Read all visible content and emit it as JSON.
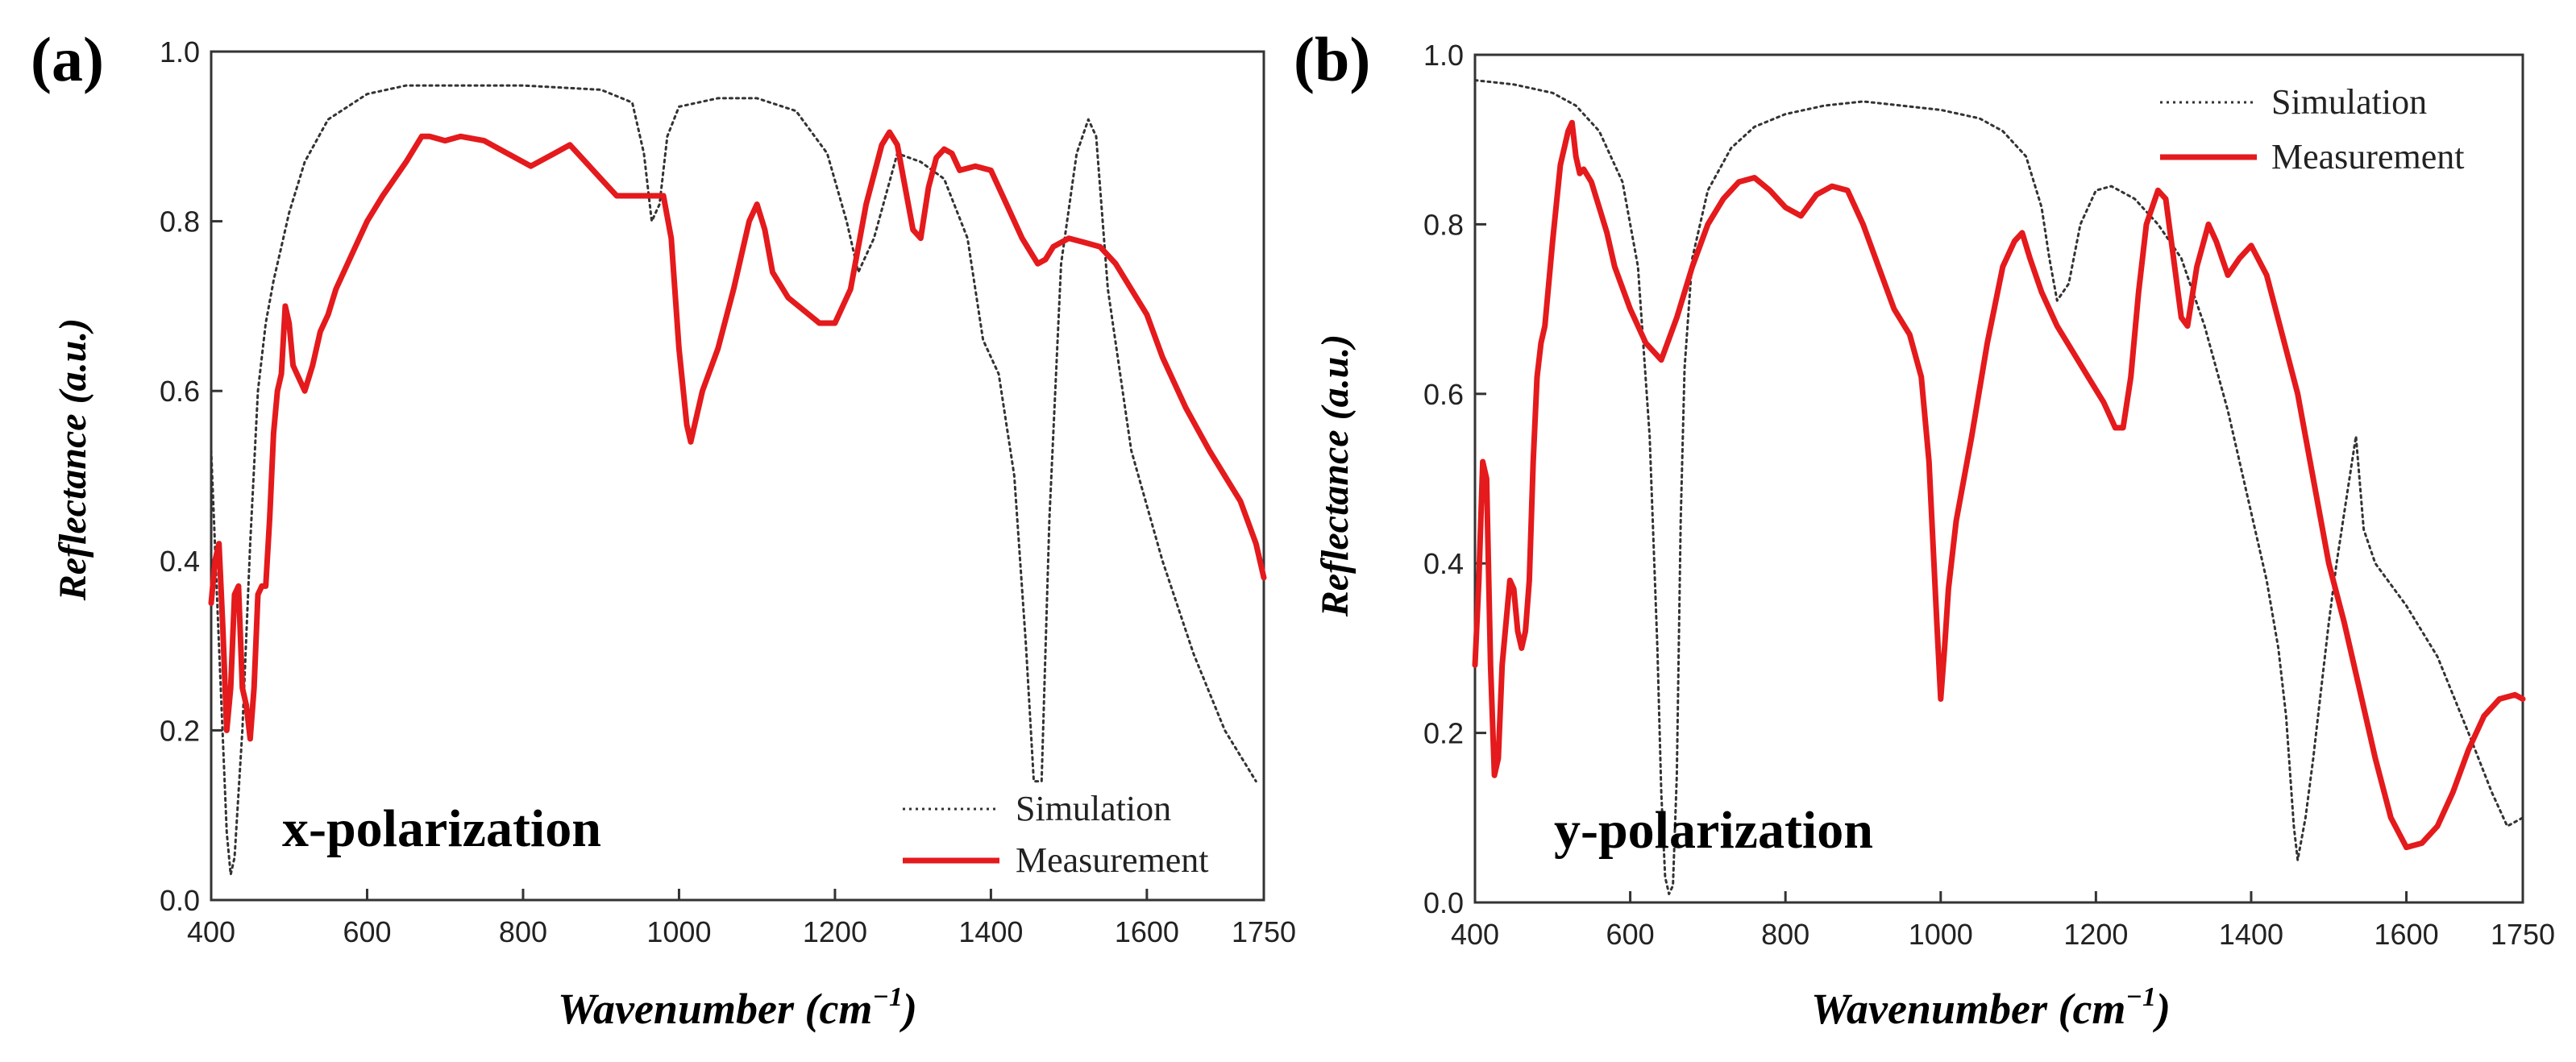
{
  "chart_data": [
    {
      "type": "line",
      "panel_label": "(a)",
      "annotation": "x-polarization",
      "xlabel": "Wavenumber (cm",
      "xlabel_sup": "−1",
      "xlabel_end": ")",
      "ylabel": "Reflectance (a.u.)",
      "xlim": [
        400,
        1750
      ],
      "ylim": [
        0.0,
        1.0
      ],
      "xticks": [
        400,
        600,
        800,
        1000,
        1200,
        1400,
        1600,
        1750
      ],
      "yticks": [
        0.0,
        0.2,
        0.4,
        0.6,
        0.8,
        1.0
      ],
      "xtick_labels": [
        "400",
        "600",
        "800",
        "1000",
        "1200",
        "1400",
        "1600",
        "1750"
      ],
      "ytick_labels": [
        "0.0",
        "0.2",
        "0.4",
        "0.6",
        "0.8",
        "1.0"
      ],
      "legend": {
        "position": "bottom-right",
        "entries": [
          "Simulation",
          "Measurement"
        ]
      },
      "series": [
        {
          "name": "Simulation",
          "style": "dotted",
          "color": "#333333",
          "x": [
            400,
            410,
            420,
            425,
            430,
            440,
            450,
            460,
            470,
            480,
            490,
            500,
            520,
            550,
            600,
            650,
            700,
            800,
            900,
            940,
            955,
            965,
            975,
            985,
            1000,
            1050,
            1100,
            1150,
            1190,
            1215,
            1230,
            1250,
            1280,
            1310,
            1340,
            1370,
            1390,
            1410,
            1430,
            1445,
            1455,
            1465,
            1475,
            1490,
            1510,
            1525,
            1535,
            1550,
            1580,
            1620,
            1660,
            1700,
            1740
          ],
          "y": [
            0.53,
            0.3,
            0.08,
            0.03,
            0.05,
            0.2,
            0.42,
            0.6,
            0.68,
            0.73,
            0.77,
            0.81,
            0.87,
            0.92,
            0.95,
            0.96,
            0.96,
            0.96,
            0.955,
            0.94,
            0.88,
            0.8,
            0.82,
            0.9,
            0.935,
            0.945,
            0.945,
            0.93,
            0.88,
            0.8,
            0.74,
            0.78,
            0.88,
            0.87,
            0.85,
            0.78,
            0.66,
            0.62,
            0.5,
            0.3,
            0.14,
            0.14,
            0.45,
            0.75,
            0.88,
            0.92,
            0.9,
            0.72,
            0.53,
            0.4,
            0.29,
            0.2,
            0.14
          ]
        },
        {
          "name": "Measurement",
          "style": "solid",
          "color": "#e41a1c",
          "x": [
            400,
            405,
            410,
            415,
            420,
            425,
            430,
            435,
            440,
            445,
            450,
            455,
            460,
            465,
            470,
            475,
            480,
            485,
            490,
            495,
            500,
            505,
            510,
            515,
            520,
            530,
            540,
            550,
            560,
            580,
            600,
            620,
            650,
            670,
            680,
            700,
            720,
            750,
            780,
            810,
            840,
            860,
            880,
            900,
            920,
            950,
            980,
            990,
            1000,
            1010,
            1015,
            1020,
            1030,
            1050,
            1070,
            1090,
            1100,
            1110,
            1120,
            1140,
            1160,
            1180,
            1200,
            1220,
            1240,
            1260,
            1270,
            1280,
            1290,
            1300,
            1310,
            1320,
            1330,
            1340,
            1350,
            1360,
            1380,
            1400,
            1420,
            1440,
            1460,
            1470,
            1480,
            1500,
            1520,
            1540,
            1560,
            1580,
            1600,
            1620,
            1650,
            1680,
            1700,
            1720,
            1740,
            1750
          ],
          "y": [
            0.35,
            0.4,
            0.42,
            0.32,
            0.2,
            0.25,
            0.36,
            0.37,
            0.25,
            0.23,
            0.19,
            0.25,
            0.36,
            0.37,
            0.37,
            0.45,
            0.55,
            0.6,
            0.62,
            0.7,
            0.68,
            0.63,
            0.62,
            0.61,
            0.6,
            0.63,
            0.67,
            0.69,
            0.72,
            0.76,
            0.8,
            0.83,
            0.87,
            0.9,
            0.9,
            0.895,
            0.9,
            0.895,
            0.88,
            0.865,
            0.88,
            0.89,
            0.87,
            0.85,
            0.83,
            0.83,
            0.83,
            0.78,
            0.65,
            0.56,
            0.54,
            0.56,
            0.6,
            0.65,
            0.72,
            0.8,
            0.82,
            0.79,
            0.74,
            0.71,
            0.695,
            0.68,
            0.68,
            0.72,
            0.82,
            0.89,
            0.905,
            0.89,
            0.84,
            0.79,
            0.78,
            0.84,
            0.875,
            0.885,
            0.88,
            0.86,
            0.865,
            0.86,
            0.82,
            0.78,
            0.75,
            0.755,
            0.77,
            0.78,
            0.775,
            0.77,
            0.75,
            0.72,
            0.69,
            0.64,
            0.58,
            0.53,
            0.5,
            0.47,
            0.42,
            0.38
          ]
        }
      ]
    },
    {
      "type": "line",
      "panel_label": "(b)",
      "annotation": "y-polarization",
      "xlabel": "Wavenumber (cm",
      "xlabel_sup": "−1",
      "xlabel_end": ")",
      "ylabel": "Reflectance (a.u.)",
      "xlim": [
        400,
        1750
      ],
      "ylim": [
        0.0,
        1.0
      ],
      "xticks": [
        400,
        600,
        800,
        1000,
        1200,
        1400,
        1600,
        1750
      ],
      "yticks": [
        0.0,
        0.2,
        0.4,
        0.6,
        0.8,
        1.0
      ],
      "xtick_labels": [
        "400",
        "600",
        "800",
        "1000",
        "1200",
        "1400",
        "1600",
        "1750"
      ],
      "ytick_labels": [
        "0.0",
        "0.2",
        "0.4",
        "0.6",
        "0.8",
        "1.0"
      ],
      "legend": {
        "position": "top-right",
        "entries": [
          "Simulation",
          "Measurement"
        ]
      },
      "series": [
        {
          "name": "Simulation",
          "style": "dotted",
          "color": "#333333",
          "x": [
            400,
            450,
            500,
            530,
            560,
            590,
            610,
            625,
            635,
            640,
            645,
            650,
            655,
            660,
            665,
            670,
            680,
            700,
            730,
            760,
            800,
            850,
            900,
            950,
            1000,
            1050,
            1080,
            1110,
            1130,
            1140,
            1150,
            1165,
            1180,
            1200,
            1220,
            1250,
            1280,
            1310,
            1340,
            1370,
            1400,
            1420,
            1435,
            1445,
            1455,
            1460,
            1470,
            1480,
            1490,
            1500,
            1510,
            1520,
            1530,
            1535,
            1545,
            1560,
            1600,
            1640,
            1680,
            1710,
            1730,
            1750
          ],
          "y": [
            0.97,
            0.965,
            0.955,
            0.94,
            0.91,
            0.85,
            0.75,
            0.55,
            0.3,
            0.13,
            0.03,
            0.01,
            0.02,
            0.15,
            0.45,
            0.63,
            0.76,
            0.84,
            0.89,
            0.915,
            0.93,
            0.94,
            0.945,
            0.94,
            0.935,
            0.925,
            0.91,
            0.88,
            0.82,
            0.76,
            0.71,
            0.73,
            0.8,
            0.84,
            0.845,
            0.83,
            0.8,
            0.76,
            0.68,
            0.58,
            0.46,
            0.38,
            0.3,
            0.22,
            0.09,
            0.05,
            0.1,
            0.17,
            0.25,
            0.33,
            0.4,
            0.46,
            0.52,
            0.55,
            0.44,
            0.4,
            0.35,
            0.29,
            0.2,
            0.13,
            0.09,
            0.1
          ]
        },
        {
          "name": "Measurement",
          "style": "solid",
          "color": "#e41a1c",
          "x": [
            400,
            405,
            410,
            415,
            420,
            425,
            430,
            435,
            440,
            445,
            450,
            455,
            460,
            465,
            470,
            475,
            480,
            485,
            490,
            500,
            510,
            520,
            525,
            530,
            535,
            540,
            550,
            560,
            570,
            580,
            600,
            620,
            640,
            660,
            680,
            700,
            720,
            740,
            760,
            780,
            800,
            820,
            840,
            860,
            880,
            900,
            920,
            940,
            960,
            975,
            985,
            995,
            1000,
            1005,
            1010,
            1020,
            1040,
            1060,
            1080,
            1095,
            1105,
            1115,
            1130,
            1150,
            1170,
            1190,
            1210,
            1225,
            1235,
            1245,
            1255,
            1265,
            1280,
            1290,
            1300,
            1310,
            1318,
            1330,
            1345,
            1355,
            1370,
            1385,
            1400,
            1420,
            1440,
            1460,
            1480,
            1500,
            1520,
            1540,
            1560,
            1580,
            1600,
            1620,
            1640,
            1660,
            1680,
            1700,
            1720,
            1740,
            1750
          ],
          "y": [
            0.28,
            0.38,
            0.52,
            0.5,
            0.28,
            0.15,
            0.17,
            0.28,
            0.33,
            0.38,
            0.37,
            0.32,
            0.3,
            0.32,
            0.38,
            0.52,
            0.62,
            0.66,
            0.68,
            0.78,
            0.87,
            0.91,
            0.92,
            0.88,
            0.86,
            0.865,
            0.85,
            0.82,
            0.79,
            0.75,
            0.7,
            0.66,
            0.64,
            0.69,
            0.75,
            0.8,
            0.83,
            0.85,
            0.855,
            0.84,
            0.82,
            0.81,
            0.835,
            0.845,
            0.84,
            0.8,
            0.75,
            0.7,
            0.67,
            0.62,
            0.52,
            0.33,
            0.24,
            0.3,
            0.37,
            0.45,
            0.55,
            0.66,
            0.75,
            0.78,
            0.79,
            0.76,
            0.72,
            0.68,
            0.65,
            0.62,
            0.59,
            0.56,
            0.56,
            0.62,
            0.72,
            0.8,
            0.84,
            0.83,
            0.76,
            0.69,
            0.68,
            0.75,
            0.8,
            0.78,
            0.74,
            0.76,
            0.775,
            0.74,
            0.67,
            0.6,
            0.5,
            0.4,
            0.33,
            0.25,
            0.17,
            0.1,
            0.065,
            0.07,
            0.09,
            0.13,
            0.18,
            0.22,
            0.24,
            0.245,
            0.24
          ]
        }
      ]
    }
  ]
}
